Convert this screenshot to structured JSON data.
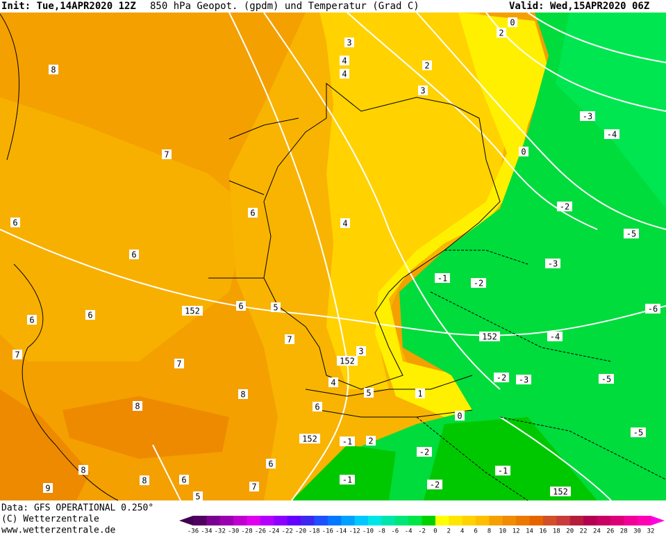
{
  "header": {
    "init": "Init: Tue,14APR2020 12Z",
    "title": "850 hPa Geopot. (gpdm) und Temperatur (Grad C)",
    "valid": "Valid: Wed,15APR2020 06Z"
  },
  "footer": {
    "data": "Data: GFS OPERATIONAL 0.250°",
    "copyright": "(C) Wetterzentrale",
    "url": "www.wetterzentrale.de"
  },
  "map": {
    "labels": [
      "8",
      "7",
      "6",
      "6",
      "6",
      "6",
      "6",
      "6",
      "5",
      "7",
      "7",
      "7",
      "8",
      "8",
      "6",
      "8",
      "8",
      "6",
      "9",
      "7",
      "6",
      "5",
      "4",
      "3",
      "4",
      "5",
      "1",
      "0",
      "2",
      "-1",
      "-2",
      "-1",
      "-2",
      "-1",
      "-2",
      "-3",
      "-5",
      "-4",
      "-1",
      "-2",
      "-3",
      "-5",
      "-2",
      "-3",
      "-4",
      "-6",
      "-5",
      "0",
      "0",
      "2",
      "2",
      "3",
      "3",
      "4",
      "4",
      "152",
      "152",
      "152",
      "152",
      "152"
    ]
  },
  "colorbar": {
    "labels": [
      "-36",
      "-34",
      "-32",
      "-30",
      "-28",
      "-26",
      "-24",
      "-22",
      "-20",
      "-18",
      "-16",
      "-14",
      "-12",
      "-10",
      "-8",
      "-6",
      "-4",
      "-2",
      "0",
      "2",
      "4",
      "6",
      "8",
      "10",
      "12",
      "14",
      "16",
      "18",
      "20",
      "22",
      "24",
      "26",
      "28",
      "30",
      "32"
    ]
  }
}
